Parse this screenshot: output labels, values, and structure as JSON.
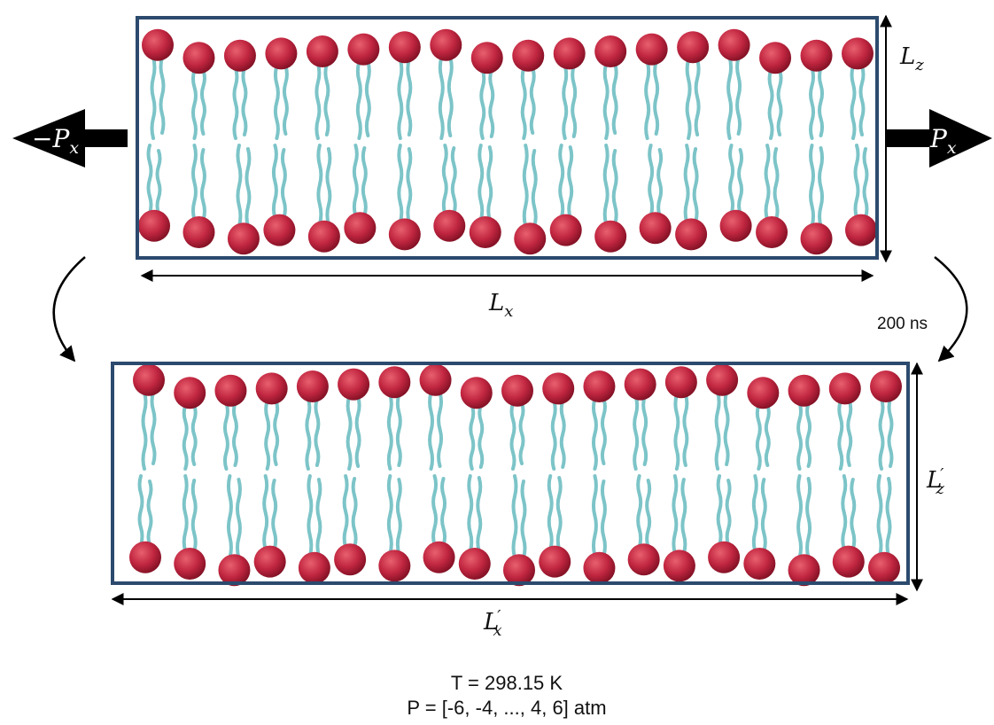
{
  "labels": {
    "lx": "L",
    "lx_sub": "x",
    "lz": "L",
    "lz_sub": "z",
    "lx_prime": "L",
    "lx_prime_sub": "x",
    "lz_prime": "L",
    "lz_prime_sub": "z",
    "prime_mark": "′",
    "neg_px": "−P",
    "neg_px_sub": "x",
    "px": "P",
    "px_sub": "x",
    "duration": "200 ns",
    "temperature": "T = 298.15 K",
    "pressure": "P = [-6, -4, ..., 4, 6] atm"
  },
  "colors": {
    "box_border": "#2c4a6e",
    "lipid_head": "#b8203a",
    "lipid_tail": "#7cc4c8",
    "arrow": "#000000"
  },
  "membranes": [
    {
      "id": "before",
      "lipids_per_leaflet": 18
    },
    {
      "id": "after",
      "lipids_per_leaflet": 19
    }
  ]
}
